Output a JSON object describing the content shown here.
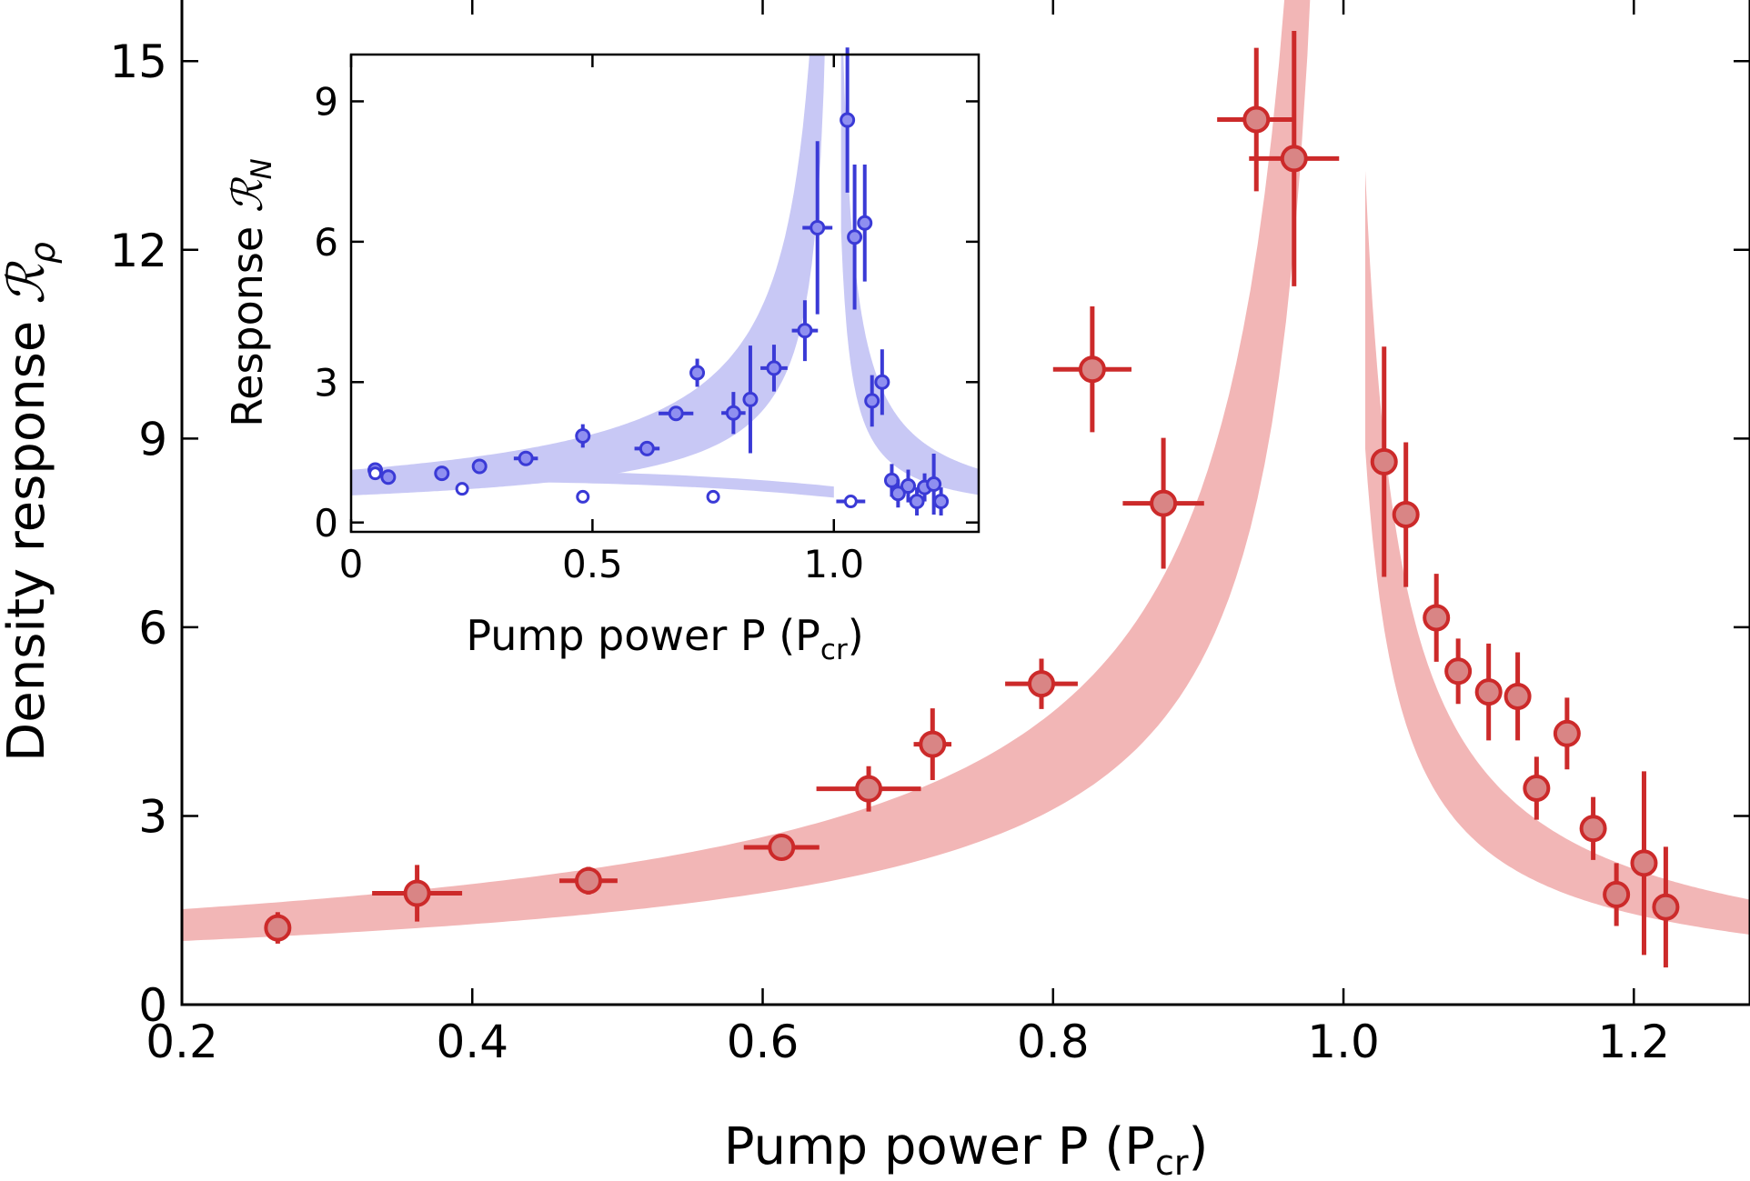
{
  "chart_data": [
    {
      "type": "scatter",
      "panel": "main",
      "xlabel": "Pump power P (P",
      "xlabel_sub": "cr",
      "xlabel_close": ")",
      "ylabel": "Density response ",
      "ylabel_symbol": "ℛ",
      "ylabel_sub": "ρ",
      "xlim": [
        0.2,
        1.28
      ],
      "ylim": [
        0,
        16
      ],
      "xticks": [
        0.2,
        0.4,
        0.6,
        0.8,
        1.0,
        1.2
      ],
      "xtick_labels": [
        "0.2",
        "0.4",
        "0.6",
        "0.8",
        "1.0",
        "1.2"
      ],
      "yticks": [
        0,
        3,
        6,
        9,
        12,
        15
      ],
      "ytick_labels": [
        "0",
        "3",
        "6",
        "9",
        "12",
        "15"
      ],
      "colors": {
        "points": "#cc2a2a",
        "marker_fill": "#d98585",
        "band": "#f2b6b6"
      },
      "points": [
        {
          "x": 0.266,
          "y": 1.22,
          "xerr": 0.0,
          "yerr": 0.25
        },
        {
          "x": 0.362,
          "y": 1.77,
          "xerr": 0.031,
          "yerr": 0.45
        },
        {
          "x": 0.48,
          "y": 1.97,
          "xerr": 0.02,
          "yerr": 0.22
        },
        {
          "x": 0.613,
          "y": 2.5,
          "xerr": 0.026,
          "yerr": 0.12
        },
        {
          "x": 0.673,
          "y": 3.43,
          "xerr": 0.036,
          "yerr": 0.36
        },
        {
          "x": 0.717,
          "y": 4.14,
          "xerr": 0.013,
          "yerr": 0.57
        },
        {
          "x": 0.792,
          "y": 5.1,
          "xerr": 0.025,
          "yerr": 0.4
        },
        {
          "x": 0.827,
          "y": 10.1,
          "xerr": 0.027,
          "yerr": 1.0
        },
        {
          "x": 0.876,
          "y": 7.97,
          "xerr": 0.028,
          "yerr": 1.04
        },
        {
          "x": 0.94,
          "y": 14.07,
          "xerr": 0.027,
          "yerr": 1.14
        },
        {
          "x": 0.966,
          "y": 13.45,
          "xerr": 0.031,
          "yerr": 2.03
        },
        {
          "x": 1.028,
          "y": 8.63,
          "xerr": 0.0,
          "yerr": 1.83
        },
        {
          "x": 1.043,
          "y": 7.79,
          "xerr": 0.0,
          "yerr": 1.15
        },
        {
          "x": 1.064,
          "y": 6.15,
          "xerr": 0.0,
          "yerr": 0.7
        },
        {
          "x": 1.079,
          "y": 5.3,
          "xerr": 0.0,
          "yerr": 0.52
        },
        {
          "x": 1.1,
          "y": 4.97,
          "xerr": 0.0,
          "yerr": 0.77
        },
        {
          "x": 1.12,
          "y": 4.9,
          "xerr": 0.0,
          "yerr": 0.7
        },
        {
          "x": 1.133,
          "y": 3.44,
          "xerr": 0.0,
          "yerr": 0.5
        },
        {
          "x": 1.154,
          "y": 4.31,
          "xerr": 0.0,
          "yerr": 0.57
        },
        {
          "x": 1.172,
          "y": 2.8,
          "xerr": 0.0,
          "yerr": 0.5
        },
        {
          "x": 1.188,
          "y": 1.75,
          "xerr": 0.0,
          "yerr": 0.5
        },
        {
          "x": 1.207,
          "y": 2.25,
          "xerr": 0.0,
          "yerr": 1.46
        },
        {
          "x": 1.222,
          "y": 1.55,
          "xerr": 0.0,
          "yerr": 0.96
        }
      ]
    },
    {
      "type": "scatter",
      "panel": "inset",
      "xlabel": "Pump power P (P",
      "xlabel_sub": "cr",
      "xlabel_close": ")",
      "ylabel": "Response ",
      "ylabel_symbol": "ℛ",
      "ylabel_sub": "N",
      "xlim": [
        0,
        1.3
      ],
      "ylim": [
        -0.2,
        10
      ],
      "xticks": [
        0,
        0.5,
        1.0
      ],
      "xtick_labels": [
        "0",
        "0.5",
        "1.0"
      ],
      "yticks": [
        0,
        3,
        6,
        9
      ],
      "ytick_labels": [
        "0",
        "3",
        "6",
        "9"
      ],
      "colors": {
        "points": "#3a3ad6",
        "marker_fill": "#8f8ff0",
        "band": "#c8c8f5"
      },
      "points": [
        {
          "x": 0.05,
          "y": 1.12,
          "xerr": 0.0,
          "yerr": 0.0
        },
        {
          "x": 0.077,
          "y": 0.97,
          "xerr": 0.0,
          "yerr": 0.0
        },
        {
          "x": 0.188,
          "y": 1.05,
          "xerr": 0.0,
          "yerr": 0.0
        },
        {
          "x": 0.266,
          "y": 1.2,
          "xerr": 0.0,
          "yerr": 0.0
        },
        {
          "x": 0.362,
          "y": 1.37,
          "xerr": 0.025,
          "yerr": 0.1
        },
        {
          "x": 0.48,
          "y": 1.85,
          "xerr": 0.0,
          "yerr": 0.25
        },
        {
          "x": 0.613,
          "y": 1.58,
          "xerr": 0.026,
          "yerr": 0.12
        },
        {
          "x": 0.673,
          "y": 2.33,
          "xerr": 0.036,
          "yerr": 0.15
        },
        {
          "x": 0.717,
          "y": 3.2,
          "xerr": 0.0,
          "yerr": 0.3
        },
        {
          "x": 0.792,
          "y": 2.34,
          "xerr": 0.025,
          "yerr": 0.45
        },
        {
          "x": 0.827,
          "y": 2.63,
          "xerr": 0.0,
          "yerr": 1.15
        },
        {
          "x": 0.876,
          "y": 3.3,
          "xerr": 0.028,
          "yerr": 0.5
        },
        {
          "x": 0.94,
          "y": 4.1,
          "xerr": 0.027,
          "yerr": 0.65
        },
        {
          "x": 0.966,
          "y": 6.3,
          "xerr": 0.031,
          "yerr": 1.85
        },
        {
          "x": 1.028,
          "y": 8.6,
          "xerr": 0.0,
          "yerr": 1.55
        },
        {
          "x": 1.043,
          "y": 6.1,
          "xerr": 0.0,
          "yerr": 1.55
        },
        {
          "x": 1.064,
          "y": 6.4,
          "xerr": 0.0,
          "yerr": 1.25
        },
        {
          "x": 1.079,
          "y": 2.6,
          "xerr": 0.0,
          "yerr": 0.55
        },
        {
          "x": 1.1,
          "y": 3.0,
          "xerr": 0.0,
          "yerr": 0.7
        },
        {
          "x": 1.12,
          "y": 0.9,
          "xerr": 0.0,
          "yerr": 0.35
        },
        {
          "x": 1.133,
          "y": 0.62,
          "xerr": 0.0,
          "yerr": 0.3
        },
        {
          "x": 1.154,
          "y": 0.78,
          "xerr": 0.0,
          "yerr": 0.35
        },
        {
          "x": 1.172,
          "y": 0.45,
          "xerr": 0.0,
          "yerr": 0.3
        },
        {
          "x": 1.188,
          "y": 0.75,
          "xerr": 0.0,
          "yerr": 0.3
        },
        {
          "x": 1.207,
          "y": 0.82,
          "xerr": 0.0,
          "yerr": 0.65
        },
        {
          "x": 1.222,
          "y": 0.45,
          "xerr": 0.0,
          "yerr": 0.3
        }
      ],
      "open_points": [
        {
          "x": 0.05,
          "y": 1.05,
          "xerr": 0.0,
          "yerr": 0.0
        },
        {
          "x": 0.23,
          "y": 0.72,
          "xerr": 0.0,
          "yerr": 0.0
        },
        {
          "x": 0.48,
          "y": 0.55,
          "xerr": 0.0,
          "yerr": 0.0
        },
        {
          "x": 0.75,
          "y": 0.55,
          "xerr": 0.0,
          "yerr": 0.0
        },
        {
          "x": 1.035,
          "y": 0.45,
          "xerr": 0.03,
          "yerr": 0.0
        }
      ]
    }
  ]
}
